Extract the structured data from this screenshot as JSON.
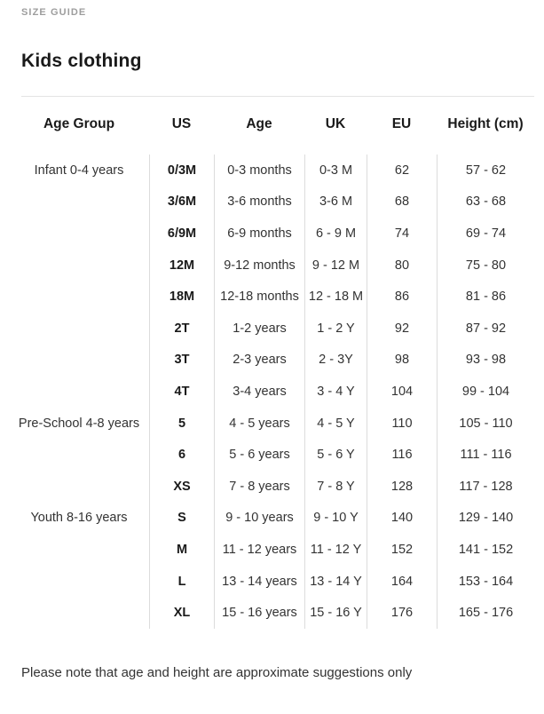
{
  "page": {
    "eyebrow": "SIZE GUIDE",
    "title": "Kids clothing",
    "footnote": "Please note that age and height are approximate suggestions only"
  },
  "colors": {
    "eyebrow_text": "#9d9d9d",
    "heading_text": "#1a1a1a",
    "body_text": "#333333",
    "table_border": "#e4e4e4",
    "column_divider": "#dcdcdc",
    "background": "#ffffff"
  },
  "table": {
    "columns": [
      "Age Group",
      "US",
      "Age",
      "UK",
      "EU",
      "Height (cm)"
    ],
    "rows": [
      {
        "group": "Infant 0-4 years",
        "us": "0/3M",
        "age": "0-3 months",
        "uk": "0-3 M",
        "eu": "62",
        "height": "57 - 62"
      },
      {
        "group": "",
        "us": "3/6M",
        "age": "3-6 months",
        "uk": "3-6 M",
        "eu": "68",
        "height": "63 - 68"
      },
      {
        "group": "",
        "us": "6/9M",
        "age": "6-9 months",
        "uk": "6 - 9 M",
        "eu": "74",
        "height": "69 - 74"
      },
      {
        "group": "",
        "us": "12M",
        "age": "9-12 months",
        "uk": "9 - 12 M",
        "eu": "80",
        "height": "75 - 80"
      },
      {
        "group": "",
        "us": "18M",
        "age": "12-18 months",
        "uk": "12 - 18 M",
        "eu": "86",
        "height": "81 - 86"
      },
      {
        "group": "",
        "us": "2T",
        "age": "1-2 years",
        "uk": "1 - 2 Y",
        "eu": "92",
        "height": "87 - 92"
      },
      {
        "group": "",
        "us": "3T",
        "age": "2-3 years",
        "uk": "2 - 3Y",
        "eu": "98",
        "height": "93 - 98"
      },
      {
        "group": "",
        "us": "4T",
        "age": "3-4 years",
        "uk": "3 - 4 Y",
        "eu": "104",
        "height": "99 - 104"
      },
      {
        "group": "Pre-School 4-8 years",
        "us": "5",
        "age": "4 - 5 years",
        "uk": "4 - 5 Y",
        "eu": "110",
        "height": "105 - 110"
      },
      {
        "group": "",
        "us": "6",
        "age": "5 - 6 years",
        "uk": "5 - 6 Y",
        "eu": "116",
        "height": "111 - 116"
      },
      {
        "group": "",
        "us": "XS",
        "age": "7 - 8 years",
        "uk": "7 - 8 Y",
        "eu": "128",
        "height": "117 - 128"
      },
      {
        "group": "Youth 8-16 years",
        "us": "S",
        "age": "9 - 10 years",
        "uk": "9 - 10 Y",
        "eu": "140",
        "height": "129 - 140"
      },
      {
        "group": "",
        "us": "M",
        "age": "11 - 12 years",
        "uk": "11 - 12 Y",
        "eu": "152",
        "height": "141 - 152"
      },
      {
        "group": "",
        "us": "L",
        "age": "13 - 14 years",
        "uk": "13 - 14 Y",
        "eu": "164",
        "height": "153 - 164"
      },
      {
        "group": "",
        "us": "XL",
        "age": "15 - 16 years",
        "uk": "15 - 16 Y",
        "eu": "176",
        "height": "165 - 176"
      }
    ]
  }
}
